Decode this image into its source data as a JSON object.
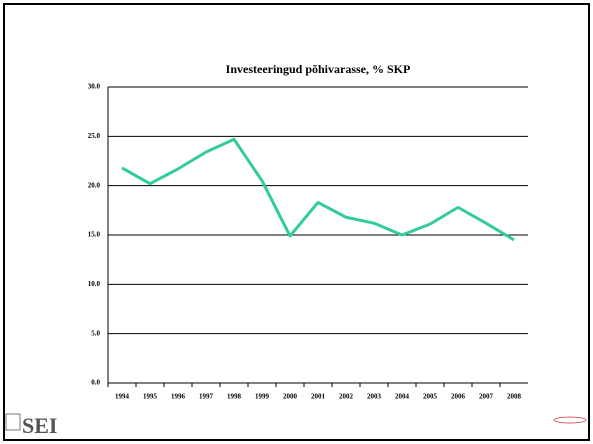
{
  "chart_data": {
    "type": "line",
    "title": "Investeeringud põhivarasse, % SKP",
    "categories": [
      "1994",
      "1995",
      "1996",
      "1997",
      "1998",
      "1999",
      "2000",
      "2001",
      "2002",
      "2003",
      "2004",
      "2005",
      "2006",
      "2007",
      "2008"
    ],
    "series": [
      {
        "name": "Investeeringud põhivarasse, % SKP",
        "color": "#33cc99",
        "values": [
          21.8,
          20.2,
          21.7,
          23.4,
          24.7,
          20.5,
          14.9,
          18.3,
          16.8,
          16.2,
          15.0,
          16.1,
          17.8,
          16.2,
          14.5
        ]
      }
    ],
    "ylim": [
      0,
      30
    ],
    "yticks": [
      {
        "value": 0,
        "label": "0.0"
      },
      {
        "value": 5,
        "label": "5.0"
      },
      {
        "value": 10,
        "label": "10.0"
      },
      {
        "value": 15,
        "label": "15.0"
      },
      {
        "value": 20,
        "label": "20.0"
      },
      {
        "value": 25,
        "label": "25.0"
      },
      {
        "value": 30,
        "label": "30.0"
      }
    ],
    "grid": true
  },
  "logo": "SEI"
}
